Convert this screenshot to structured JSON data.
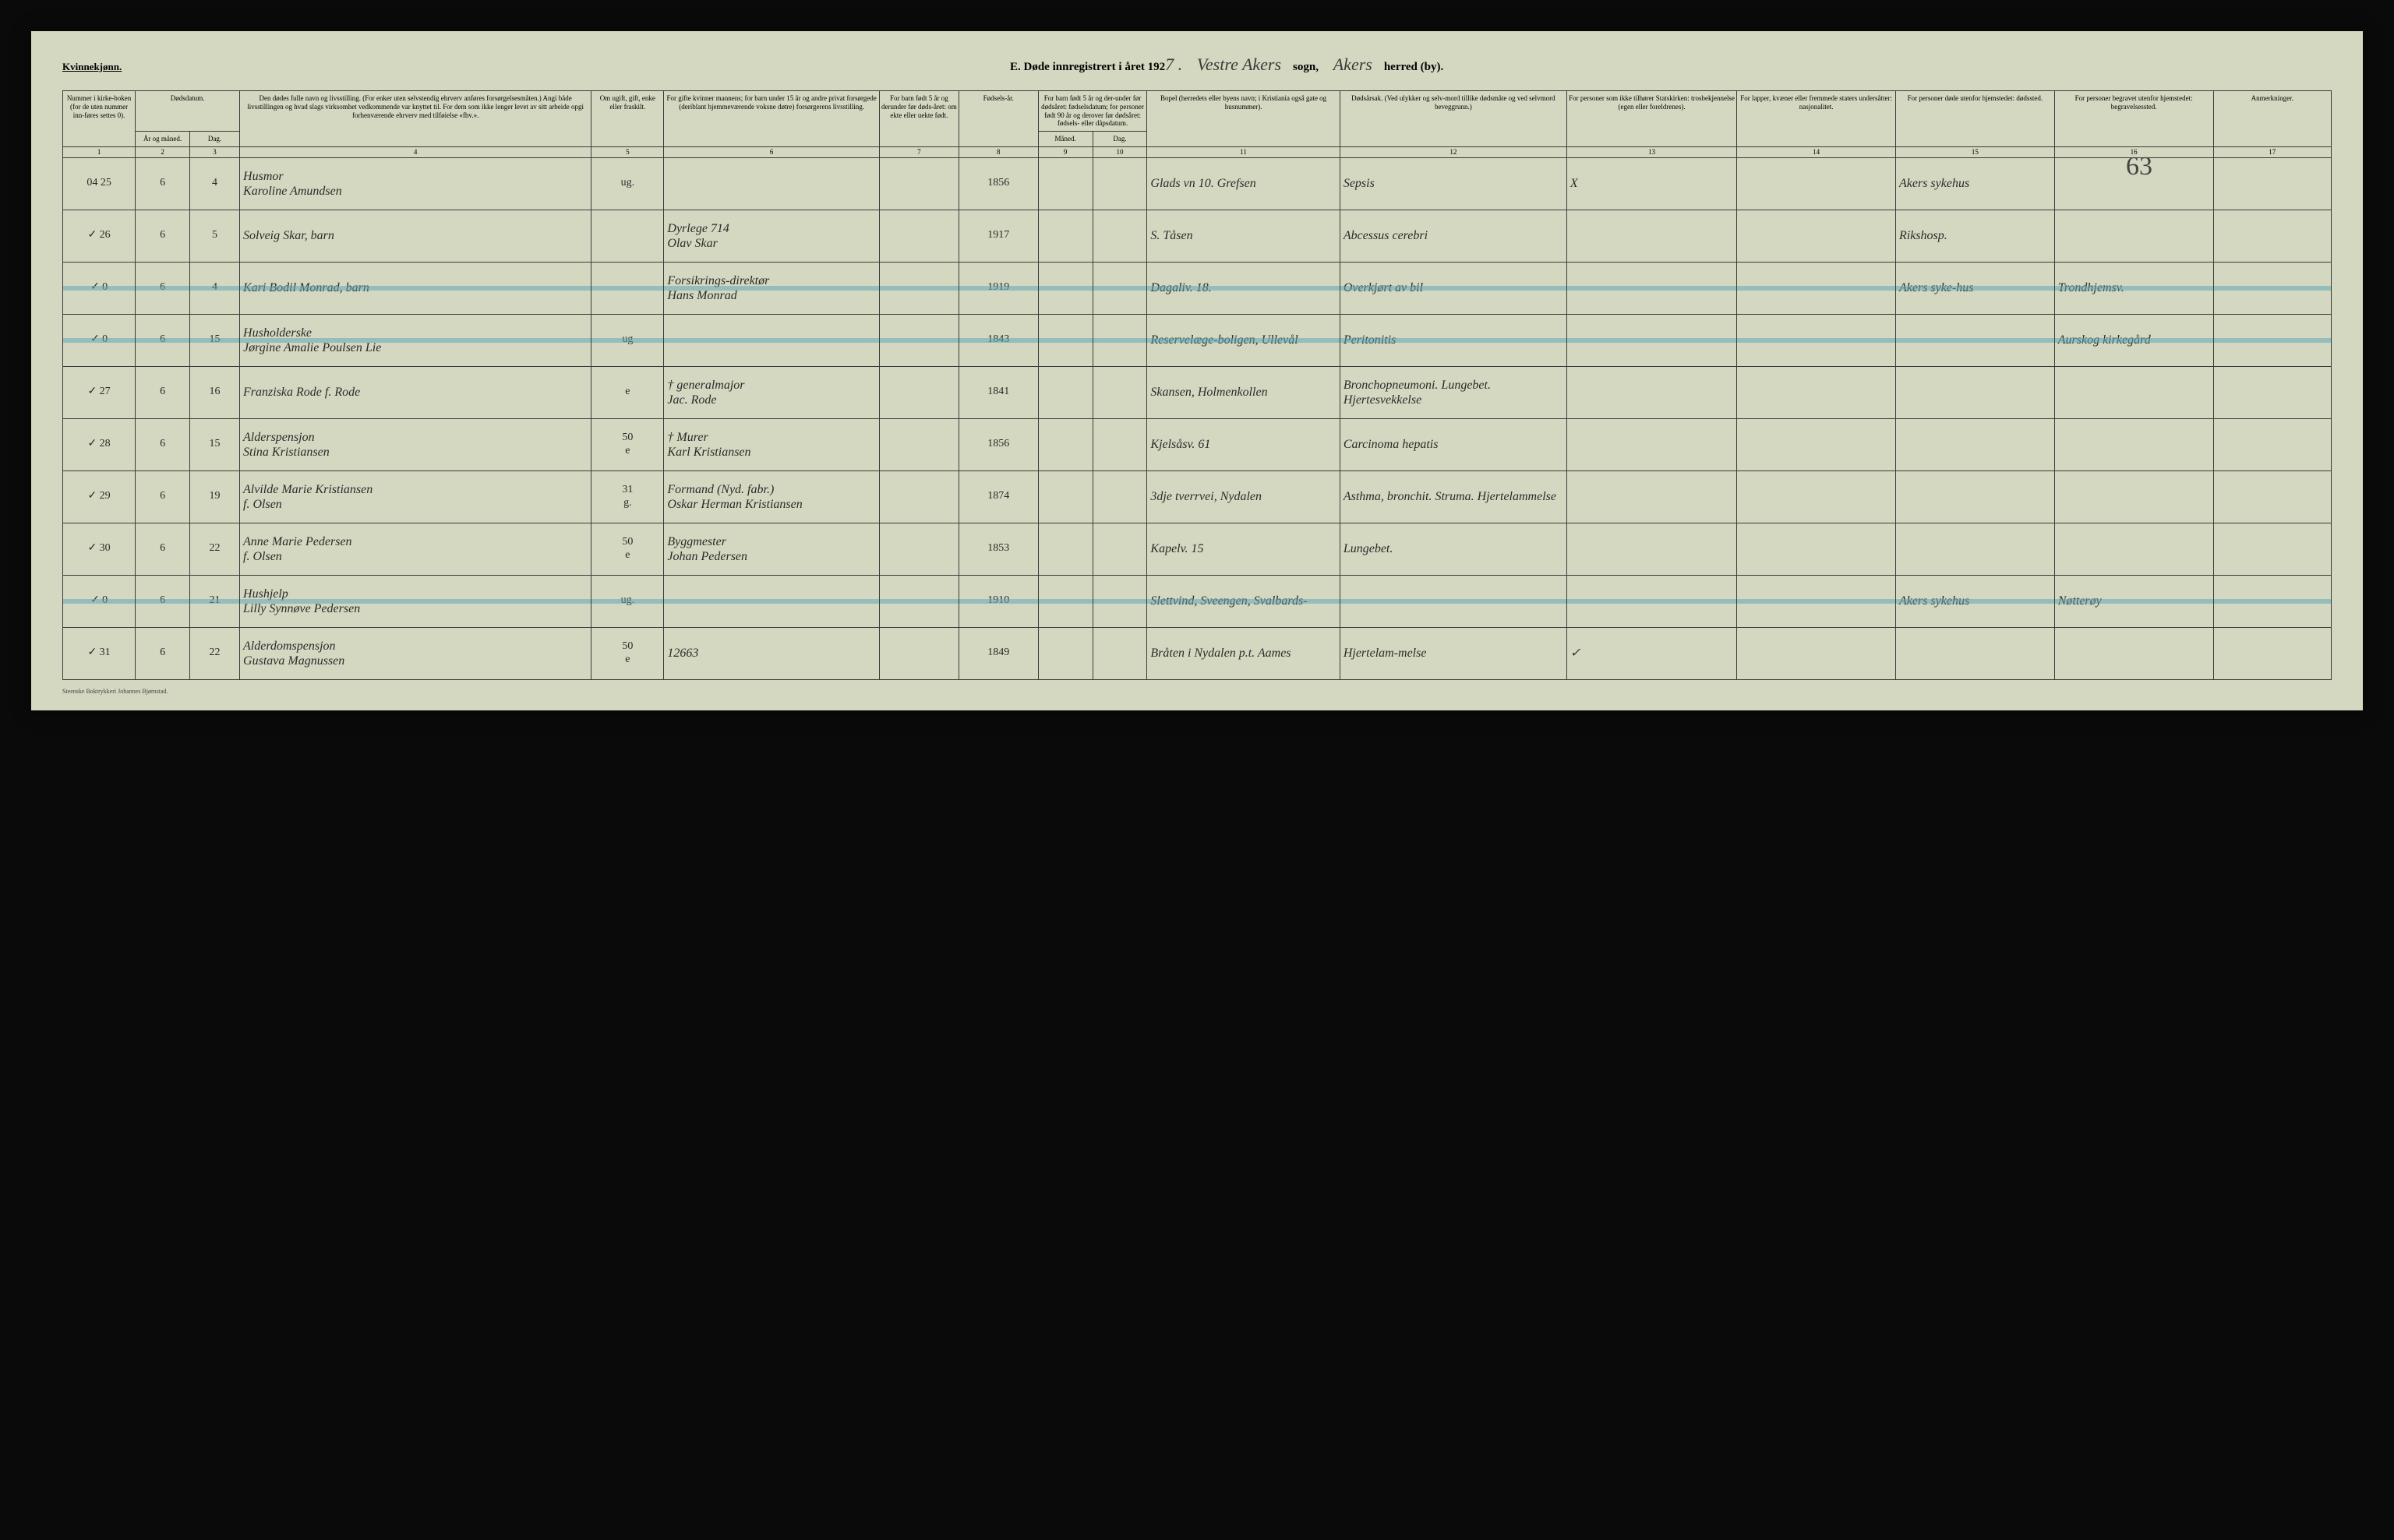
{
  "header": {
    "gender": "Kvinnekjønn.",
    "title_prefix": "E.  Døde innregistrert i året 192",
    "year_suffix": "7 .",
    "parish_hand": "Vestre Akers",
    "parish_label": "sogn,",
    "district_hand": "Akers",
    "district_label": "herred (by)."
  },
  "handwritten_page_mark": "63",
  "columns": {
    "c1": "Nummer i kirke-boken (for de uten nummer inn-føres settes 0).",
    "c2_3": "Dødsdatum.",
    "c2": "År og måned.",
    "c3": "Dag.",
    "c4": "Den dødes fulle navn og livsstilling. (For enker uten selvstendig ehrverv anføres forsørgelsesmåten.) Angi både livsstillingen og hvad slags virksomhet vedkommende var knyttet til. For dem som ikke lenger levet av sitt arbeide opgi forhenværende ehrverv med tilføielse «fhv.».",
    "c5": "Om ugift, gift, enke eller fraskilt.",
    "c6": "For gifte kvinner mannens; for barn under 15 år og andre privat forsørgede (deriblant hjemmeværende voksne døtre) forsørgerens livsstilling.",
    "c7": "For barn født 5 år og derunder før døds-året: om ekte eller uekte født.",
    "c8": "Fødsels-år.",
    "c9_10": "For barn født 5 år og der-under før dødsåret: fødselsdatum; for personer født 90 år og derover før dødsåret: fødsels- eller dåpsdatum.",
    "c9": "Måned.",
    "c10": "Dag.",
    "c11": "Bopel (herredets eller byens navn; i Kristiania også gate og husnummer).",
    "c12": "Dødsårsak. (Ved ulykker og selv-mord tillike dødsmåte og ved selvmord beveggrunn.)",
    "c13": "For personer som ikke tilhører Statskirken: trosbekjennelse (egen eller foreldrenes).",
    "c14": "For lapper, kvæner eller fremmede staters undersåtter: nasjonalitet.",
    "c15": "For personer døde utenfor hjemstedet: dødssted.",
    "c16": "For personer begravet utenfor hjemstedet: begravelsessted.",
    "c17": "Anmerkninger."
  },
  "col_nums": [
    "1",
    "2",
    "3",
    "4",
    "5",
    "6",
    "7",
    "8",
    "9",
    "10",
    "11",
    "12",
    "13",
    "14",
    "15",
    "16",
    "17"
  ],
  "rows": [
    {
      "num": "25",
      "mon": "6",
      "day": "4",
      "name": "Husmor\nKaroline Amundsen",
      "status": "ug.",
      "spouse": "",
      "legit": "",
      "birth": "1856",
      "bm": "",
      "bd": "",
      "residence": "Glads vn 10. Grefsen",
      "cause": "Sepsis",
      "faith_mark": "X",
      "nat": "",
      "deathplace": "Akers sykehus",
      "burial": "",
      "remarks": "",
      "margin": "04",
      "highlight": false
    },
    {
      "num": "26",
      "mon": "6",
      "day": "5",
      "name": "Solveig Skar, barn",
      "status": "",
      "spouse": "Dyrlege  714\nOlav Skar",
      "legit": "",
      "birth": "1917",
      "bm": "",
      "bd": "",
      "residence": "S. Tåsen",
      "cause": "Abcessus cerebri",
      "faith_mark": "",
      "nat": "",
      "deathplace": "Rikshosp.",
      "burial": "",
      "remarks": "",
      "margin": "✓",
      "highlight": false
    },
    {
      "num": "0",
      "mon": "6",
      "day": "4",
      "name": "Kari Bodil Monrad, barn",
      "status": "",
      "spouse": "Forsikrings-direktør\nHans Monrad",
      "legit": "",
      "birth": "1919",
      "bm": "",
      "bd": "",
      "residence": "Dagaliv. 18.",
      "cause": "Overkjørt av bil",
      "faith_mark": "",
      "nat": "",
      "deathplace": "Akers syke-hus",
      "burial": "Trondhjemsv.",
      "remarks": "",
      "margin": "✓",
      "highlight": true
    },
    {
      "num": "0",
      "mon": "6",
      "day": "15",
      "name": "Husholderske\nJørgine Amalie Poulsen Lie",
      "status": "ug",
      "spouse": "",
      "legit": "",
      "birth": "1843",
      "bm": "",
      "bd": "",
      "residence": "Reservelæge-boligen, Ullevål",
      "cause": "Peritonitis",
      "faith_mark": "",
      "nat": "",
      "deathplace": "",
      "burial": "Aurskog kirkegård",
      "remarks": "",
      "margin": "✓",
      "highlight": true
    },
    {
      "num": "27",
      "mon": "6",
      "day": "16",
      "name": "Franziska Rode f. Rode",
      "status": "e",
      "spouse": "† generalmajor\nJac. Rode",
      "legit": "",
      "birth": "1841",
      "bm": "",
      "bd": "",
      "residence": "Skansen, Holmenkollen",
      "cause": "Bronchopneumoni. Lungebet. Hjertesvekkelse",
      "faith_mark": "",
      "nat": "",
      "deathplace": "",
      "burial": "",
      "remarks": "",
      "margin": "✓",
      "highlight": false
    },
    {
      "num": "28",
      "mon": "6",
      "day": "15",
      "name": "Alderspensjon\nStina Kristiansen",
      "status": "50\ne",
      "spouse": "† Murer\nKarl Kristiansen",
      "legit": "",
      "birth": "1856",
      "bm": "",
      "bd": "",
      "residence": "Kjelsåsv. 61",
      "cause": "Carcinoma hepatis",
      "faith_mark": "",
      "nat": "",
      "deathplace": "",
      "burial": "",
      "remarks": "",
      "margin": "✓",
      "highlight": false
    },
    {
      "num": "29",
      "mon": "6",
      "day": "19",
      "name": "Alvilde Marie Kristiansen\nf. Olsen",
      "status": "31\ng.",
      "spouse": "Formand (Nyd. fabr.)\nOskar Herman Kristiansen",
      "legit": "",
      "birth": "1874",
      "bm": "",
      "bd": "",
      "residence": "3dje tverrvei, Nydalen",
      "cause": "Asthma, bronchit. Struma. Hjertelammelse",
      "faith_mark": "",
      "nat": "",
      "deathplace": "",
      "burial": "",
      "remarks": "",
      "margin": "✓",
      "highlight": false
    },
    {
      "num": "30",
      "mon": "6",
      "day": "22",
      "name": "Anne Marie Pedersen\nf. Olsen",
      "status": "50\ne",
      "spouse": "Byggmester\nJohan Pedersen",
      "legit": "",
      "birth": "1853",
      "bm": "",
      "bd": "",
      "residence": "Kapelv. 15",
      "cause": "Lungebet.",
      "faith_mark": "",
      "nat": "",
      "deathplace": "",
      "burial": "",
      "remarks": "",
      "margin": "✓",
      "highlight": false
    },
    {
      "num": "0",
      "mon": "6",
      "day": "21",
      "name": "Hushjelp\nLilly Synnøve Pedersen",
      "status": "ug.",
      "spouse": "",
      "legit": "",
      "birth": "1910",
      "bm": "",
      "bd": "",
      "residence": "Slettvind, Sveengen, Svalbards-",
      "cause": "",
      "faith_mark": "",
      "nat": "",
      "deathplace": "Akers sykehus",
      "burial": "Nøtterøy",
      "remarks": "",
      "margin": "✓",
      "highlight": true
    },
    {
      "num": "31",
      "mon": "6",
      "day": "22",
      "name": "Alderdomspensjon\nGustava Magnussen",
      "status": "50\ne",
      "spouse": "12663",
      "legit": "",
      "birth": "1849",
      "bm": "",
      "bd": "",
      "residence": "Bråten i Nydalen p.t. Aames",
      "cause": "Hjertelam-melse",
      "faith_mark": "✓",
      "nat": "",
      "deathplace": "",
      "burial": "",
      "remarks": "",
      "margin": "✓",
      "highlight": false
    }
  ],
  "footer": "Steenske Boktrykkeri Johannes Bjørnstad.",
  "style": {
    "page_bg": "#d4d8c0",
    "ink": "#2a2a2a",
    "rule": "#3a3a3a",
    "highlight": "#5fa8b8",
    "col_widths_pct": [
      3.2,
      2.4,
      2.2,
      15.5,
      3.2,
      9.5,
      3.5,
      3.5,
      2.4,
      2.4,
      8.5,
      10.0,
      7.5,
      7.0,
      7.0,
      7.0,
      5.2
    ]
  }
}
